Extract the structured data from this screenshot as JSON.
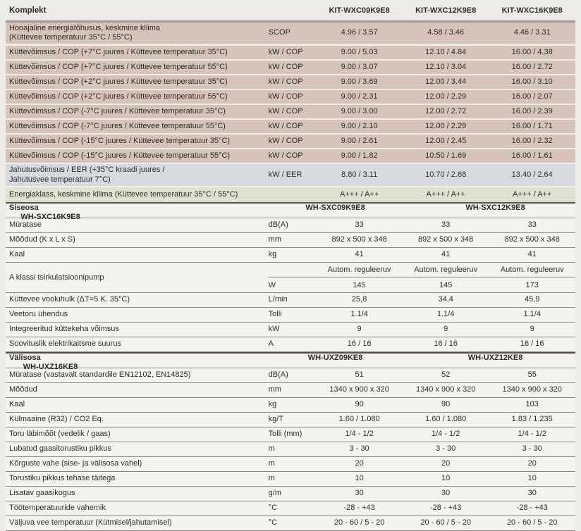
{
  "colors": {
    "page_bg": "#edebe8",
    "row_plain_bg": "#f5f3f0",
    "row_pink_bg": "#d6c3b9",
    "row_blue_bg": "#d6dadd",
    "row_green_bg": "#dfe1d1",
    "separator_thin": "#8d8a86",
    "separator_dark": "#55524e",
    "header_underline": "#9c9893",
    "text": "#2d2c2a"
  },
  "sections": [
    {
      "id": "komplekt",
      "header": {
        "label": "Komplekt",
        "models": [
          "KIT-WXC09K9E8",
          "KIT-WXC12K9E8",
          "KIT-WXC16K9E8"
        ]
      },
      "rows": [
        {
          "style": "pink tall",
          "label": [
            "Hooajaline energiatõhusus, keskmine kliima",
            "(Küttevee temperatuur 35°C / 55°C)"
          ],
          "unit": "SCOP",
          "values": [
            "4.96 / 3.57",
            "4.58 / 3.46",
            "4.46 / 3.31"
          ]
        },
        {
          "style": "pink",
          "label": [
            "Küttevõimsus / COP (+7°C juures / Küttevee temperatuur 35°C)"
          ],
          "unit": "kW / COP",
          "values": [
            "9.00 / 5.03",
            "12.10 / 4.84",
            "16.00 / 4.38"
          ]
        },
        {
          "style": "pink",
          "label": [
            "Küttevõimsus / COP (+7°C juures / Küttevee temperatuur 55°C)"
          ],
          "unit": "kW / COP",
          "values": [
            "9.00 / 3.07",
            "12.10 / 3.04",
            "16.00 / 2.72"
          ]
        },
        {
          "style": "pink",
          "label": [
            "Küttevõimsus / COP (+2°C juures / Küttevee temperatuur 35°C)"
          ],
          "unit": "kW / COP",
          "values": [
            "9.00 / 3.69",
            "12.00 / 3.44",
            "16.00 / 3.10"
          ]
        },
        {
          "style": "pink",
          "label": [
            "Küttevõimsus / COP (+2°C juures / Küttevee temperatuur 55°C)"
          ],
          "unit": "kW / COP",
          "values": [
            "9.00 / 2.31",
            "12.00 / 2.29",
            "16.00 / 2.07"
          ]
        },
        {
          "style": "pink",
          "label": [
            "Küttevõimsus / COP (-7°C juures / Küttevee temperatuur 35°C)"
          ],
          "unit": "kW / COP",
          "values": [
            "9.00 / 3.00",
            "12.00 / 2.72",
            "16.00 / 2.39"
          ]
        },
        {
          "style": "pink",
          "label": [
            "Küttevõimsus / COP (-7°C juures / Küttevee temperatuur 55°C)"
          ],
          "unit": "kW / COP",
          "values": [
            "9.00 / 2.10",
            "12.00 / 2.29",
            "16.00 / 1.71"
          ]
        },
        {
          "style": "pink",
          "label": [
            "Küttevõimsus / COP (-15°C juures / Küttevee temperatuur 35°C)"
          ],
          "unit": "kW / COP",
          "values": [
            "9.00 / 2.61",
            "12.00 / 2.45",
            "16.00 / 2.32"
          ]
        },
        {
          "style": "pink",
          "label": [
            "Küttevõimsus / COP (-15°C juures / Küttevee temperatuur 55°C)"
          ],
          "unit": "kW / COP",
          "values": [
            "9.00 / 1.82",
            "10.50 / 1.69",
            "16.00 / 1.61"
          ]
        },
        {
          "style": "blue",
          "label": [
            "Jahutusvõimsus / EER (+35°C kraadi juures /",
            "Jahutusvee temperatuur 7°C)"
          ],
          "unit": "kW / EER",
          "values": [
            "8.80 / 3.11",
            "10.70 / 2.68",
            "13.40 / 2.64"
          ]
        },
        {
          "style": "green",
          "label": [
            "Energiaklass, keskmine kliima (Küttevee temperatuur 35°C / 55°C)"
          ],
          "unit": "",
          "values": [
            "A+++ / A++",
            "A+++ / A++",
            "A+++ / A++"
          ]
        }
      ]
    },
    {
      "id": "siseosa",
      "header": {
        "label": "Siseosa",
        "models": [
          "WH-SXC09K9E8",
          "WH-SXC12K9E8",
          "WH-SXC16K9E8"
        ]
      },
      "rows": [
        {
          "style": "plain",
          "label": [
            "Müratase"
          ],
          "unit": "dB(A)",
          "values": [
            "33",
            "33",
            "33"
          ]
        },
        {
          "style": "plain",
          "label": [
            "Mõõdud (K x L x S)"
          ],
          "unit": "mm",
          "values": [
            "892 x 500 x 348",
            "892 x 500 x 348",
            "892 x 500 x 348"
          ]
        },
        {
          "style": "plain",
          "label": [
            "Kaal"
          ],
          "unit": "kg",
          "values": [
            "41",
            "41",
            "41"
          ]
        },
        {
          "type": "split",
          "label": "A klassi tsirkulatsioonipump",
          "sub": [
            {
              "unit": "",
              "values": [
                "Autom. reguleeruv",
                "Autom. reguleeruv",
                "Autom. reguleeruv"
              ]
            },
            {
              "unit": "W",
              "values": [
                "145",
                "145",
                "173"
              ]
            }
          ]
        },
        {
          "style": "plain",
          "label": [
            "Küttevee vooluhulk  (ΔT=5 K. 35°C)"
          ],
          "unit": "L/min",
          "values": [
            "25,8",
            "34,4",
            "45,9"
          ]
        },
        {
          "style": "plain",
          "label": [
            "Veetoru ühendus"
          ],
          "unit": "Tolli",
          "values": [
            "1.1/4",
            "1.1/4",
            "1.1/4"
          ]
        },
        {
          "style": "plain",
          "label": [
            "Integreeritud küttekeha võimsus"
          ],
          "unit": "kW",
          "values": [
            "9",
            "9",
            "9"
          ]
        },
        {
          "style": "plain",
          "label": [
            "Soovituslik elektrikaitsme suurus"
          ],
          "unit": "A",
          "values": [
            "16 / 16",
            "16 / 16",
            "16 / 16"
          ]
        }
      ]
    },
    {
      "id": "valisosa",
      "header": {
        "label": "Välisosa",
        "models": [
          "WH-UXZ09KE8",
          "WH-UXZ12KE8",
          "WH-UXZ16KE8"
        ]
      },
      "rows": [
        {
          "style": "plain",
          "label": [
            "Müratase (vastavalt standardile  EN12102, EN14825)"
          ],
          "unit": "dB(A)",
          "values": [
            "51",
            "52",
            "55"
          ]
        },
        {
          "style": "plain",
          "label": [
            "Mõõdud"
          ],
          "unit": "mm",
          "values": [
            "1340 x 900 x 320",
            "1340 x 900 x 320",
            "1340 x 900 x 320"
          ]
        },
        {
          "style": "plain",
          "label": [
            "Kaal"
          ],
          "unit": "kg",
          "values": [
            "90",
            "90",
            "103"
          ]
        },
        {
          "style": "plain",
          "label": [
            "Külmaaine  (R32) / CO2 Eq."
          ],
          "unit": "kg/T",
          "values": [
            "1.60 / 1.080",
            "1.60 / 1.080",
            "1.83 / 1.235"
          ]
        },
        {
          "style": "plain",
          "label": [
            "Toru läbimõõt (vedelik / gaas)"
          ],
          "unit": "Tolli (mm)",
          "values": [
            "1/4 - 1/2",
            "1/4 - 1/2",
            "1/4 - 1/2"
          ]
        },
        {
          "style": "plain",
          "label": [
            "Lubatud gaasitorustiku pikkus"
          ],
          "unit": "m",
          "values": [
            "3 - 30",
            "3 - 30",
            "3 - 30"
          ]
        },
        {
          "style": "plain",
          "label": [
            "Kõrguste vahe (sise- ja välisosa vahel)"
          ],
          "unit": "m",
          "values": [
            "20",
            "20",
            "20"
          ]
        },
        {
          "style": "plain",
          "label": [
            "Torustiku pikkus tehase täitega"
          ],
          "unit": "m",
          "values": [
            "10",
            "10",
            "10"
          ]
        },
        {
          "style": "plain",
          "label": [
            "Lisatav gaasikogus"
          ],
          "unit": "g/m",
          "values": [
            "30",
            "30",
            "30"
          ]
        },
        {
          "style": "plain",
          "label": [
            "Töötemperatuuride vahemik"
          ],
          "unit": "°C",
          "values": [
            "-28 - +43",
            "-28 - +43",
            "-28 - +43"
          ]
        },
        {
          "style": "plain",
          "label": [
            "Väljuva vee temperatuur (Kütmisel/jahutamisel)"
          ],
          "unit": "°C",
          "values": [
            "20 - 60 / 5 - 20",
            "20 - 60 / 5 - 20",
            "20 - 60 / 5 - 20"
          ]
        }
      ]
    }
  ]
}
